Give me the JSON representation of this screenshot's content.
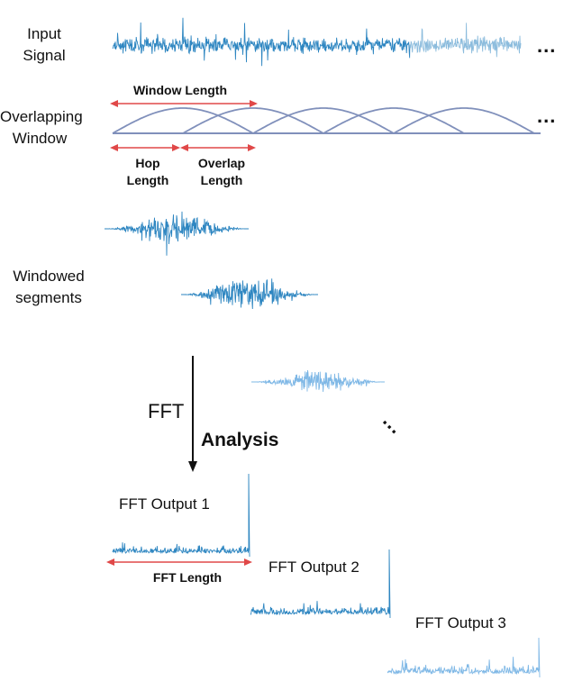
{
  "labels": {
    "input_signal": "Input\nSignal",
    "overlapping_window": "Overlapping\nWindow",
    "window_length": "Window Length",
    "hop_length": "Hop\nLength",
    "overlap_length": "Overlap\nLength",
    "windowed_segments": "Windowed\nsegments",
    "fft": "FFT",
    "analysis": "Analysis",
    "fft_output_1": "FFT Output 1",
    "fft_output_2": "FFT Output 2",
    "fft_output_3": "FFT Output 3",
    "fft_length": "FFT Length",
    "ellipsis": "...",
    "ellipsis_diag": "..."
  },
  "colors": {
    "signal_dark": "#2e86c1",
    "signal_light": "#7fb8e6",
    "window_curve": "#8090bb",
    "arrow_red": "#e04848",
    "arrow_black": "#111111",
    "text": "#111111"
  }
}
